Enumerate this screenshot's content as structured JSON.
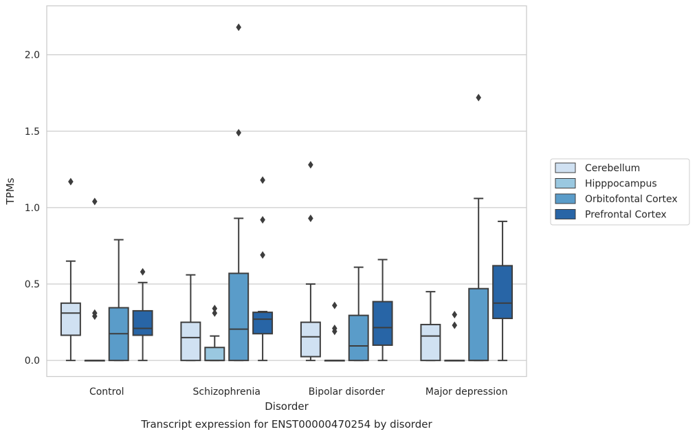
{
  "chart_data": {
    "type": "boxplot",
    "caption": "Transcript expression for ENST00000470254 by disorder",
    "xlabel": "Disorder",
    "ylabel": "TPMs",
    "ylim": [
      -0.105,
      2.32
    ],
    "yticks": [
      0.0,
      0.5,
      1.0,
      1.5,
      2.0
    ],
    "ytick_labels": [
      "0.0",
      "0.5",
      "1.0",
      "1.5",
      "2.0"
    ],
    "grid": "horizontal",
    "legend_position": "right",
    "categories": [
      "Control",
      "Schizophrenia",
      "Bipolar disorder",
      "Major depression"
    ],
    "series": [
      {
        "name": "Cerebellum",
        "color": "#d0e1f2",
        "boxes": [
          {
            "whislo": 0.0,
            "q1": 0.165,
            "med": 0.31,
            "q3": 0.375,
            "whishi": 0.65,
            "fliers": [
              1.17
            ]
          },
          {
            "whislo": 0.0,
            "q1": 0.0,
            "med": 0.15,
            "q3": 0.25,
            "whishi": 0.56,
            "fliers": []
          },
          {
            "whislo": 0.0,
            "q1": 0.025,
            "med": 0.155,
            "q3": 0.25,
            "whishi": 0.5,
            "fliers": [
              0.93,
              1.28
            ]
          },
          {
            "whislo": 0.0,
            "q1": 0.0,
            "med": 0.16,
            "q3": 0.235,
            "whishi": 0.45,
            "fliers": []
          }
        ]
      },
      {
        "name": "Hipppocampus",
        "color": "#9ac8e0",
        "boxes": [
          {
            "whislo": 0.0,
            "q1": 0.0,
            "med": 0.0,
            "q3": 0.0,
            "whishi": 0.0,
            "fliers": [
              0.29,
              0.31,
              1.04
            ]
          },
          {
            "whislo": 0.0,
            "q1": 0.0,
            "med": 0.0,
            "q3": 0.085,
            "whishi": 0.16,
            "fliers": [
              0.31,
              0.34
            ]
          },
          {
            "whislo": 0.0,
            "q1": 0.0,
            "med": 0.0,
            "q3": 0.0,
            "whishi": 0.0,
            "fliers": [
              0.19,
              0.21,
              0.36
            ]
          },
          {
            "whislo": 0.0,
            "q1": 0.0,
            "med": 0.0,
            "q3": 0.0,
            "whishi": 0.0,
            "fliers": [
              0.23,
              0.3
            ]
          }
        ]
      },
      {
        "name": "Orbitofontal Cortex",
        "color": "#5a9cc9",
        "boxes": [
          {
            "whislo": 0.0,
            "q1": 0.0,
            "med": 0.175,
            "q3": 0.345,
            "whishi": 0.79,
            "fliers": []
          },
          {
            "whislo": 0.0,
            "q1": 0.0,
            "med": 0.205,
            "q3": 0.57,
            "whishi": 0.93,
            "fliers": [
              1.49,
              2.18
            ]
          },
          {
            "whislo": 0.0,
            "q1": 0.0,
            "med": 0.095,
            "q3": 0.295,
            "whishi": 0.61,
            "fliers": []
          },
          {
            "whislo": 0.0,
            "q1": 0.0,
            "med": 0.0,
            "q3": 0.47,
            "whishi": 1.06,
            "fliers": [
              1.72
            ]
          }
        ]
      },
      {
        "name": "Prefrontal Cortex",
        "color": "#2865a6",
        "boxes": [
          {
            "whislo": 0.0,
            "q1": 0.165,
            "med": 0.21,
            "q3": 0.325,
            "whishi": 0.51,
            "fliers": [
              0.58
            ]
          },
          {
            "whislo": 0.0,
            "q1": 0.175,
            "med": 0.27,
            "q3": 0.315,
            "whishi": 0.32,
            "fliers": [
              0.69,
              0.92,
              1.18
            ]
          },
          {
            "whislo": 0.0,
            "q1": 0.1,
            "med": 0.215,
            "q3": 0.385,
            "whishi": 0.66,
            "fliers": []
          },
          {
            "whislo": 0.0,
            "q1": 0.275,
            "med": 0.375,
            "q3": 0.62,
            "whishi": 0.91,
            "fliers": []
          }
        ]
      }
    ]
  }
}
